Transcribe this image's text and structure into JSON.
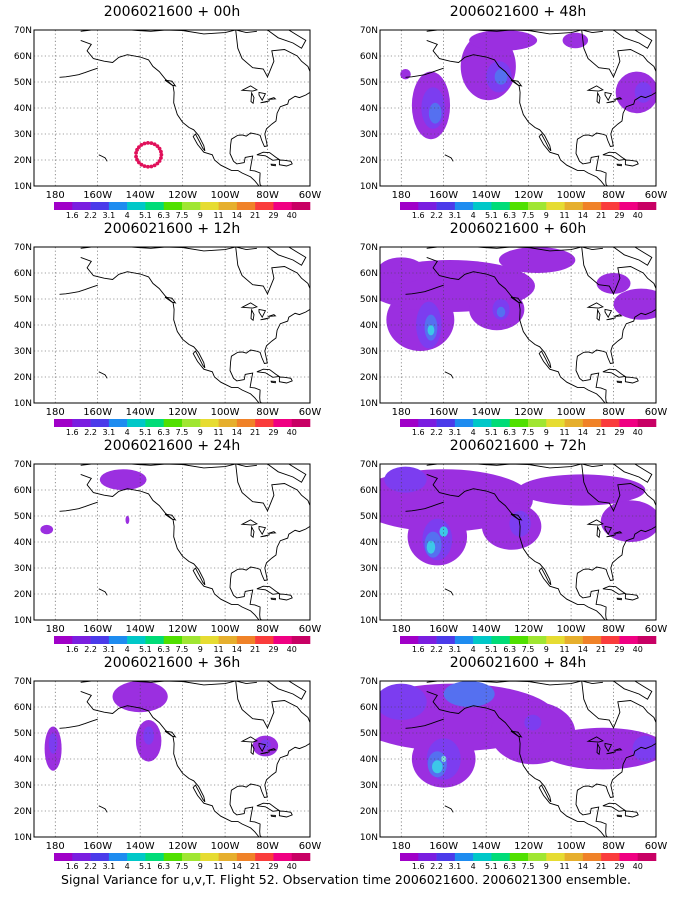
{
  "figure": {
    "footer": "Signal Variance for u,v,T. Flight 52. Observation time 2006021600. 2006021300 ensemble."
  },
  "map": {
    "lat_labels": [
      "70N",
      "60N",
      "50N",
      "40N",
      "30N",
      "20N",
      "10N"
    ],
    "lon_labels": [
      "180",
      "160W",
      "140W",
      "120W",
      "100W",
      "80W",
      "60W"
    ],
    "lat_range": [
      10,
      70
    ],
    "lon_range": [
      -190,
      -60
    ],
    "gridlines": "dotted"
  },
  "colorbar": {
    "labels": [
      "1.6",
      "2.2",
      "3.1",
      "4",
      "5.1",
      "6.3",
      "7.5",
      "9",
      "11",
      "14",
      "21",
      "29",
      "40"
    ],
    "colors": [
      "#a000c8",
      "#7a1ee0",
      "#4b3bea",
      "#1e8cf0",
      "#00c8c8",
      "#00dc78",
      "#50e000",
      "#a0e632",
      "#e6dc32",
      "#e6af2d",
      "#f08228",
      "#fa3c3c",
      "#f00082",
      "#c80064"
    ]
  },
  "panels": [
    {
      "id": "p00",
      "title": "2006021600 + 00h"
    },
    {
      "id": "p48",
      "title": "2006021600 + 48h"
    },
    {
      "id": "p12",
      "title": "2006021600 + 12h"
    },
    {
      "id": "p60",
      "title": "2006021600 + 60h"
    },
    {
      "id": "p24",
      "title": "2006021600 + 24h"
    },
    {
      "id": "p72",
      "title": "2006021600 + 72h"
    },
    {
      "id": "p36",
      "title": "2006021600 + 36h"
    },
    {
      "id": "p84",
      "title": "2006021600 + 84h"
    }
  ],
  "flight_track_color": "#e0105a",
  "shading_colors": {
    "level1": "#9b2fe0",
    "level2": "#7c3df0",
    "level3": "#5570f0",
    "level4": "#3cc8e8",
    "level5": "#7ee0e0"
  }
}
